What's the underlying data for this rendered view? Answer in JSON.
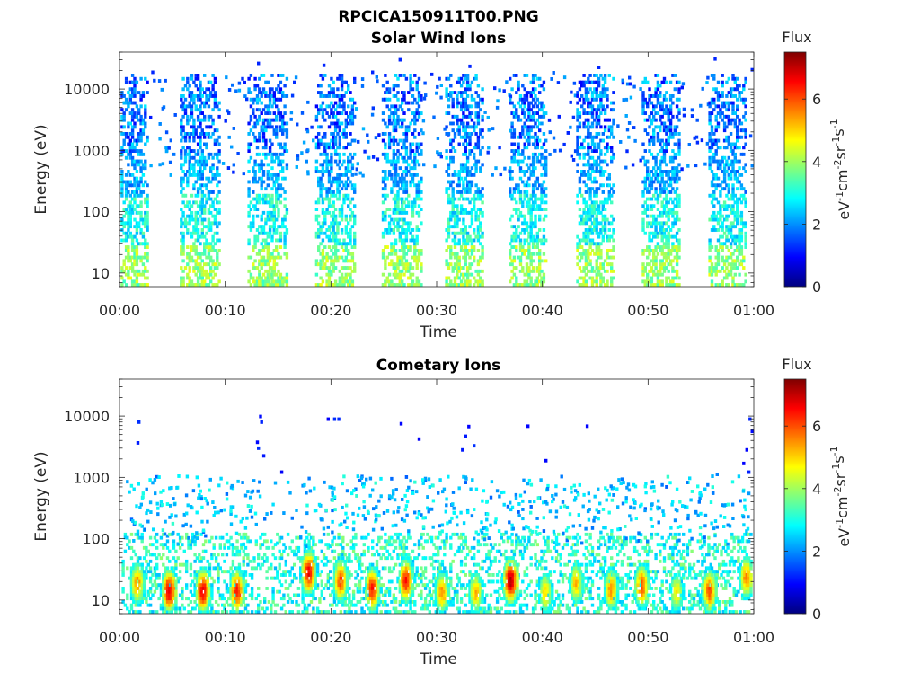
{
  "figure_title": "RPCICA150911T00.PNG",
  "colorbar": {
    "label": "Flux",
    "unit_main": "eV",
    "unit_parts": [
      "eV",
      "-1",
      "cm",
      "-2",
      "sr",
      "-1",
      "s",
      "-1"
    ],
    "ticks": [
      "0",
      "2",
      "4",
      "6"
    ],
    "range": [
      0,
      7.5
    ],
    "colormap": "jet",
    "colors": [
      "#00007f",
      "#0000ff",
      "#007fff",
      "#00ffff",
      "#7fff7f",
      "#ffff00",
      "#ff7f00",
      "#ff0000",
      "#7f0000"
    ]
  },
  "chart_data": [
    {
      "type": "heatmap",
      "title": "Solar Wind Ions",
      "xlabel": "Time",
      "ylabel": "Energy (eV)",
      "x_ticks": [
        "00:00",
        "00:10",
        "00:20",
        "00:30",
        "00:40",
        "00:50",
        "01:00"
      ],
      "x_range_minutes": [
        0,
        60
      ],
      "y_scale": "log",
      "y_ticks": [
        "10",
        "100",
        "1000",
        "10000"
      ],
      "y_range_eV": [
        6,
        40000
      ],
      "bursts_center_minutes": [
        0.9,
        7.5,
        13.9,
        20.3,
        26.6,
        32.6,
        38.6,
        45.0,
        51.2,
        57.5
      ],
      "burst_width_minutes": 3.6,
      "energy_range_eV": [
        6,
        20000
      ],
      "peak_flux_at_low_energy": 4.6,
      "dominant_flux_high_energy": 1.5
    },
    {
      "type": "heatmap",
      "title": "Cometary Ions",
      "xlabel": "Time",
      "ylabel": "Energy (eV)",
      "x_ticks": [
        "00:00",
        "00:10",
        "00:20",
        "00:30",
        "00:40",
        "00:50",
        "01:00"
      ],
      "x_range_minutes": [
        0,
        60
      ],
      "y_scale": "log",
      "y_ticks": [
        "10",
        "100",
        "1000",
        "10000"
      ],
      "y_range_eV": [
        6,
        40000
      ],
      "peaks": [
        {
          "t_min": 1.6,
          "e_eV": 20,
          "flux": 5.5
        },
        {
          "t_min": 4.6,
          "e_eV": 15,
          "flux": 6.8
        },
        {
          "t_min": 7.8,
          "e_eV": 15,
          "flux": 6.7
        },
        {
          "t_min": 11.0,
          "e_eV": 15,
          "flux": 6.4
        },
        {
          "t_min": 17.8,
          "e_eV": 30,
          "flux": 6.6
        },
        {
          "t_min": 20.8,
          "e_eV": 22,
          "flux": 6.0
        },
        {
          "t_min": 23.8,
          "e_eV": 16,
          "flux": 6.4
        },
        {
          "t_min": 27.0,
          "e_eV": 22,
          "flux": 6.4
        },
        {
          "t_min": 30.4,
          "e_eV": 14,
          "flux": 5.5
        },
        {
          "t_min": 33.6,
          "e_eV": 14,
          "flux": 5.2
        },
        {
          "t_min": 36.9,
          "e_eV": 22,
          "flux": 7.2
        },
        {
          "t_min": 40.2,
          "e_eV": 14,
          "flux": 5.0
        },
        {
          "t_min": 43.1,
          "e_eV": 20,
          "flux": 5.2
        },
        {
          "t_min": 46.4,
          "e_eV": 16,
          "flux": 5.5
        },
        {
          "t_min": 49.3,
          "e_eV": 18,
          "flux": 6.0
        },
        {
          "t_min": 52.6,
          "e_eV": 14,
          "flux": 4.8
        },
        {
          "t_min": 55.7,
          "e_eV": 15,
          "flux": 6.0
        },
        {
          "t_min": 59.2,
          "e_eV": 25,
          "flux": 5.6
        }
      ],
      "sparse_high_energy_dots_eV": [
        1000,
        10000
      ]
    }
  ]
}
